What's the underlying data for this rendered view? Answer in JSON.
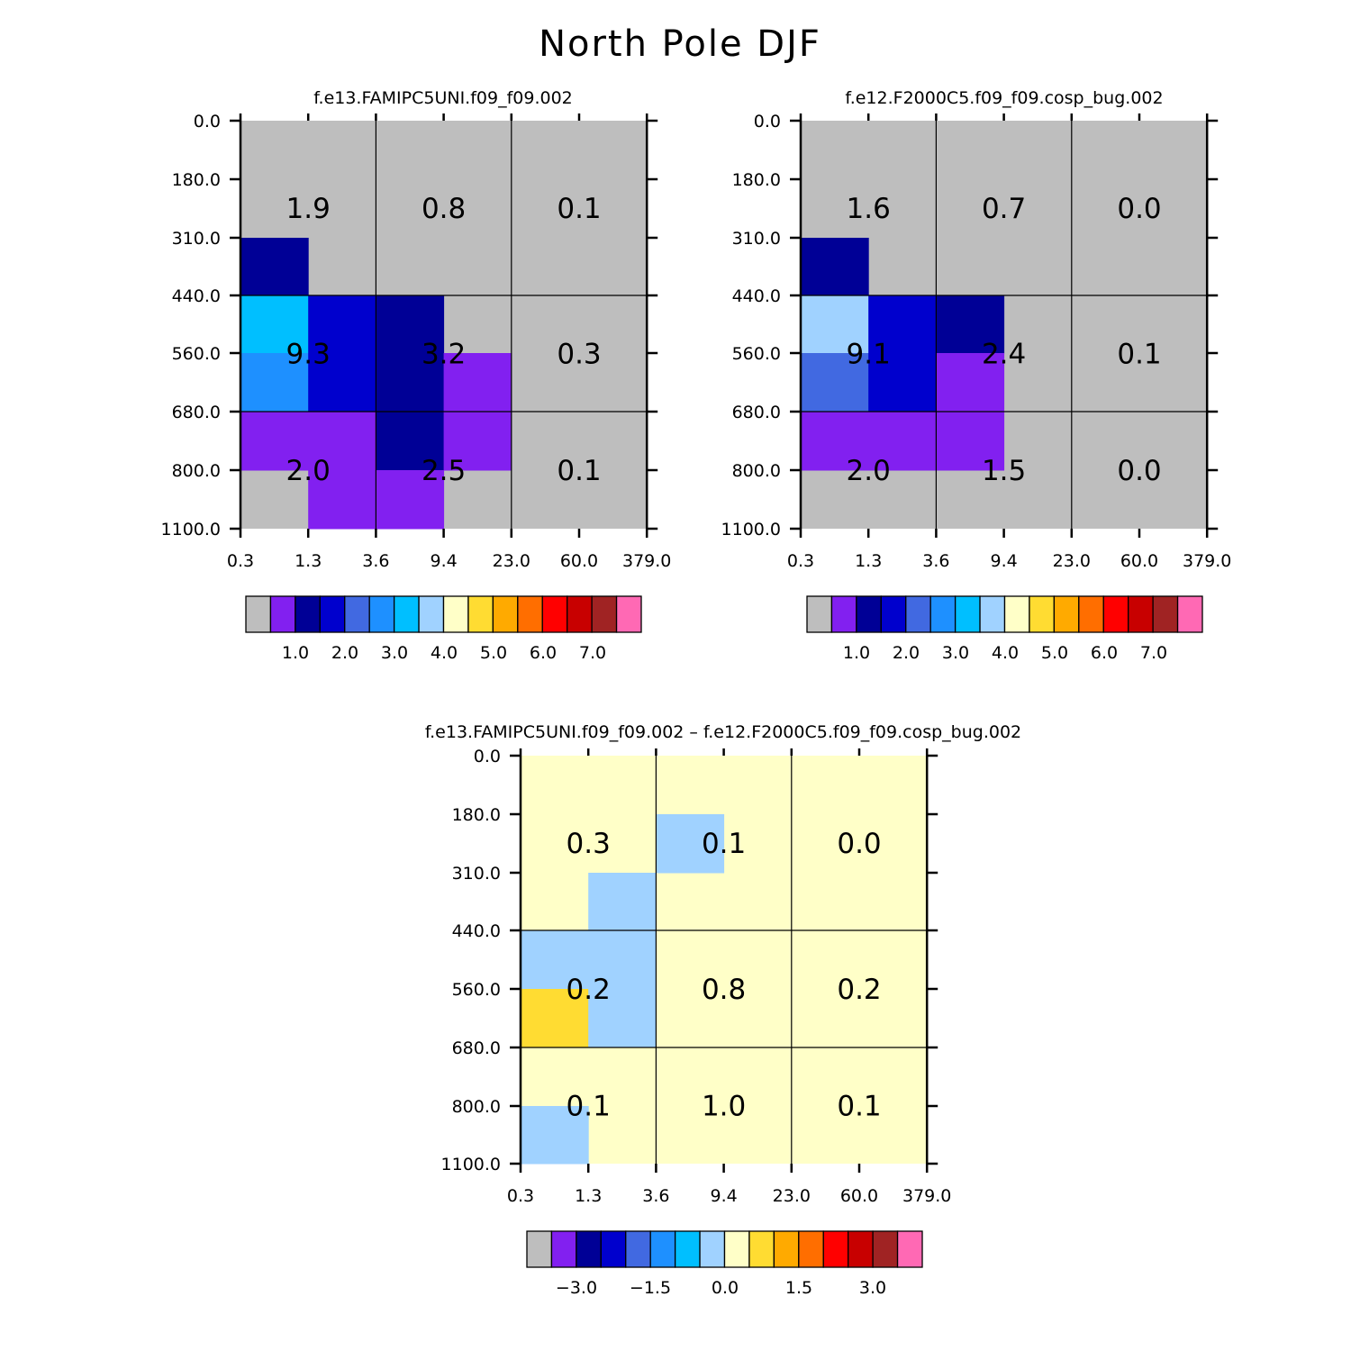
{
  "title": "North Pole DJF",
  "chart_data": [
    {
      "type": "heatmap",
      "title": "f.e13.FAMIPC5UNI.f09_f09.002",
      "x_tick_labels": [
        "0.3",
        "1.3",
        "3.6",
        "9.4",
        "23.0",
        "60.0",
        "379.0"
      ],
      "y_tick_labels": [
        "0.0",
        "180.0",
        "310.0",
        "440.0",
        "560.0",
        "680.0",
        "800.0",
        "1100.0"
      ],
      "cells": [
        [
          "0",
          "0",
          "0",
          "0",
          "0",
          "0"
        ],
        [
          "0",
          "0",
          "0",
          "0",
          "0",
          "0"
        ],
        [
          "navy",
          "0",
          "0",
          "0",
          "0",
          "0"
        ],
        [
          "deepskyblue",
          "blue",
          "navy",
          "0",
          "0",
          "0"
        ],
        [
          "dodgerblue",
          "blue",
          "navy",
          "purple",
          "0",
          "0"
        ],
        [
          "purple",
          "purple",
          "navy",
          "purple",
          "0",
          "0"
        ],
        [
          "0",
          "purple",
          "purple",
          "0",
          "0",
          "0"
        ]
      ],
      "region_labels": [
        [
          "1.9",
          "0.8",
          "0.1"
        ],
        [
          "9.3",
          "3.2",
          "0.3"
        ],
        [
          "2.0",
          "2.5",
          "0.1"
        ]
      ],
      "colorbar": {
        "colors": [
          "#bebebe",
          "#8220f0",
          "#000096",
          "#0000cd",
          "#4169e1",
          "#1e90ff",
          "#00bfff",
          "#a0d2ff",
          "#ffffc8",
          "#ffdc32",
          "#ffaa00",
          "#ff6e00",
          "#ff0000",
          "#c80000",
          "#a02323",
          "#ff69b4"
        ],
        "labels": [
          "1.0",
          "2.0",
          "3.0",
          "4.0",
          "5.0",
          "6.0",
          "7.0"
        ]
      }
    },
    {
      "type": "heatmap",
      "title": "f.e12.F2000C5.f09_f09.cosp_bug.002",
      "x_tick_labels": [
        "0.3",
        "1.3",
        "3.6",
        "9.4",
        "23.0",
        "60.0",
        "379.0"
      ],
      "y_tick_labels": [
        "0.0",
        "180.0",
        "310.0",
        "440.0",
        "560.0",
        "680.0",
        "800.0",
        "1100.0"
      ],
      "cells": [
        [
          "0",
          "0",
          "0",
          "0",
          "0",
          "0"
        ],
        [
          "0",
          "0",
          "0",
          "0",
          "0",
          "0"
        ],
        [
          "navy",
          "0",
          "0",
          "0",
          "0",
          "0"
        ],
        [
          "lightblue",
          "blue",
          "navy",
          "0",
          "0",
          "0"
        ],
        [
          "royalblue",
          "blue",
          "purple",
          "0",
          "0",
          "0"
        ],
        [
          "purple",
          "purple",
          "purple",
          "0",
          "0",
          "0"
        ],
        [
          "0",
          "0",
          "0",
          "0",
          "0",
          "0"
        ]
      ],
      "region_labels": [
        [
          "1.6",
          "0.7",
          "0.0"
        ],
        [
          "9.1",
          "2.4",
          "0.1"
        ],
        [
          "2.0",
          "1.5",
          "0.0"
        ]
      ],
      "colorbar": {
        "colors": [
          "#bebebe",
          "#8220f0",
          "#000096",
          "#0000cd",
          "#4169e1",
          "#1e90ff",
          "#00bfff",
          "#a0d2ff",
          "#ffffc8",
          "#ffdc32",
          "#ffaa00",
          "#ff6e00",
          "#ff0000",
          "#c80000",
          "#a02323",
          "#ff69b4"
        ],
        "labels": [
          "1.0",
          "2.0",
          "3.0",
          "4.0",
          "5.0",
          "6.0",
          "7.0"
        ]
      }
    },
    {
      "type": "heatmap",
      "title": "f.e13.FAMIPC5UNI.f09_f09.002 – f.e12.F2000C5.f09_f09.cosp_bug.002",
      "x_tick_labels": [
        "0.3",
        "1.3",
        "3.6",
        "9.4",
        "23.0",
        "60.0",
        "379.0"
      ],
      "y_tick_labels": [
        "0.0",
        "180.0",
        "310.0",
        "440.0",
        "560.0",
        "680.0",
        "800.0",
        "1100.0"
      ],
      "cells": [
        [
          "0",
          "0",
          "0",
          "0",
          "0",
          "0"
        ],
        [
          "0",
          "0",
          "lightblue",
          "0",
          "0",
          "0"
        ],
        [
          "0",
          "lightblue",
          "0",
          "0",
          "0",
          "0"
        ],
        [
          "lightblue",
          "lightblue",
          "0",
          "0",
          "0",
          "0"
        ],
        [
          "gold",
          "lightblue",
          "0",
          "0",
          "0",
          "0"
        ],
        [
          "0",
          "0",
          "0",
          "0",
          "0",
          "0"
        ],
        [
          "lightblue",
          "0",
          "0",
          "0",
          "0",
          "0"
        ]
      ],
      "region_labels": [
        [
          "0.3",
          "0.1",
          "0.0"
        ],
        [
          "0.2",
          "0.8",
          "0.2"
        ],
        [
          "0.1",
          "1.0",
          "0.1"
        ]
      ],
      "colorbar": {
        "colors": [
          "#bebebe",
          "#8220f0",
          "#000096",
          "#0000cd",
          "#4169e1",
          "#1e90ff",
          "#00bfff",
          "#a0d2ff",
          "#ffffc8",
          "#ffdc32",
          "#ffaa00",
          "#ff6e00",
          "#ff0000",
          "#c80000",
          "#a02323",
          "#ff69b4"
        ],
        "labels": [
          "−3.0",
          "−1.5",
          "0.0",
          "1.5",
          "3.0"
        ]
      }
    }
  ],
  "palette": {
    "0": "#bebebe",
    "navy": "#000096",
    "blue": "#0000cd",
    "royalblue": "#4169e1",
    "dodgerblue": "#1e90ff",
    "deepskyblue": "#00bfff",
    "lightblue": "#a0d2ff",
    "cream": "#ffffc8",
    "gold": "#ffdc32",
    "purple": "#8220f0"
  },
  "diff_background": "#ffffc8"
}
